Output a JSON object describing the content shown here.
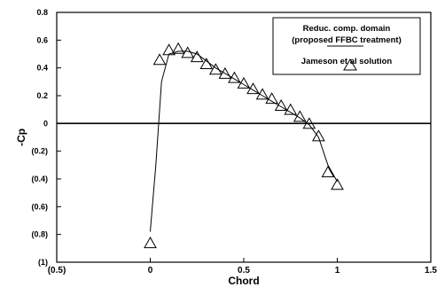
{
  "chart_data": {
    "type": "line",
    "xlabel": "Chord",
    "ylabel": "-Cp",
    "xlim": [
      -0.5,
      1.5
    ],
    "ylim": [
      -1.0,
      0.8
    ],
    "x_ticks": [
      "(0.5)",
      "0",
      "0.5",
      "1",
      "1.5"
    ],
    "y_ticks": [
      "0.8",
      "0.6",
      "0.4",
      "0.2",
      "0",
      "(0.2)",
      "(0.4)",
      "(0.6)",
      "(0.8)",
      "(1)"
    ],
    "legend": {
      "position": "top-right",
      "line_label_1": "Reduc. comp. domain",
      "line_label_2": "(proposed FFBC treatment)",
      "marker_label": "Jameson et al solution"
    },
    "series": [
      {
        "style": "line",
        "x": [
          0.0,
          0.03,
          0.06,
          0.1,
          0.15,
          0.2,
          0.25,
          0.3,
          0.35,
          0.4,
          0.45,
          0.5,
          0.55,
          0.6,
          0.65,
          0.7,
          0.75,
          0.8,
          0.85,
          0.9,
          0.95,
          1.0
        ],
        "y": [
          -0.78,
          -0.3,
          0.3,
          0.5,
          0.52,
          0.52,
          0.5,
          0.45,
          0.4,
          0.36,
          0.32,
          0.28,
          0.24,
          0.2,
          0.16,
          0.12,
          0.08,
          0.04,
          -0.01,
          -0.1,
          -0.3,
          -0.42
        ]
      },
      {
        "style": "markers",
        "marker": "triangle",
        "x": [
          0.0,
          0.05,
          0.1,
          0.15,
          0.2,
          0.25,
          0.3,
          0.35,
          0.4,
          0.45,
          0.5,
          0.55,
          0.6,
          0.65,
          0.7,
          0.75,
          0.8,
          0.85,
          0.9,
          0.95,
          1.0
        ],
        "y": [
          -0.86,
          0.46,
          0.53,
          0.54,
          0.51,
          0.48,
          0.43,
          0.39,
          0.36,
          0.33,
          0.29,
          0.25,
          0.21,
          0.18,
          0.13,
          0.1,
          0.05,
          0.0,
          -0.09,
          -0.35,
          -0.44
        ]
      }
    ]
  }
}
